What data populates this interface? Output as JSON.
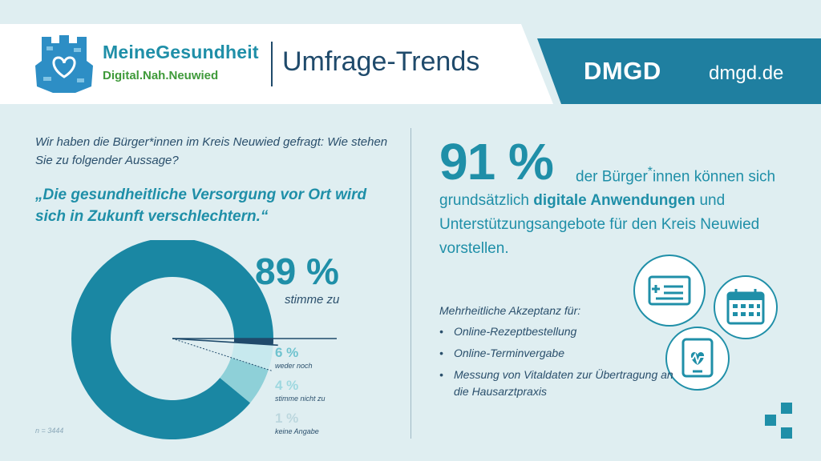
{
  "brand": {
    "name_part1": "Meine",
    "name_part2": "Gesundheit",
    "tagline": "Digital.Nah.Neuwied"
  },
  "header": {
    "title": "Umfrage-Trends",
    "org": "DMGD",
    "url": "dmgd.de"
  },
  "survey": {
    "intro": "Wir haben die Bürger*innen im Kreis Neuwied gefragt: Wie stehen Sie zu folgender Aussage?",
    "quote": "„Die gesundheitliche Versorgung vor Ort wird sich in Zukunft verschlechtern.“",
    "sample_note": "n = 3444"
  },
  "chart_data": {
    "type": "pie",
    "categories": [
      "stimme zu",
      "weder noch",
      "stimme nicht zu",
      "keine Angabe"
    ],
    "values": [
      89,
      6,
      4,
      1
    ],
    "value_labels": [
      "89 %",
      "6 %",
      "4 %",
      "1 %"
    ],
    "colors": [
      "#1a87a3",
      "#8ed0d8",
      "#c7e9ee",
      "#1f4a6b"
    ]
  },
  "stat": {
    "percent": "91 %",
    "text_before_sup": "der Bürger",
    "sup": "*",
    "text_after_sup": "innen können sich grundsätzlich",
    "bold": "digitale Anwendungen",
    "text_end": "und Unterstützungsangebote für den Kreis Neuwied vorstellen."
  },
  "acceptance": {
    "title": "Mehrheitliche Akzeptanz für:",
    "items": [
      "Online-Rezeptbestellung",
      "Online-Terminvergabe",
      "Messung von Vitaldaten zur Übertragung an die Hausarztpraxis"
    ]
  },
  "icons": [
    "prescription-card-icon",
    "calendar-icon",
    "tablet-heartbeat-icon",
    "squares-logo-icon"
  ],
  "colors": {
    "accent": "#1f8fa8",
    "dark": "#1f4a6b",
    "green": "#3f9a3a",
    "background": "#dfeef1"
  }
}
